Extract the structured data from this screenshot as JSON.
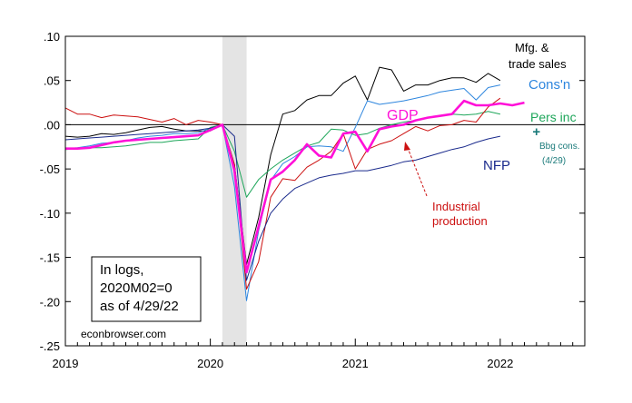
{
  "chart_data": {
    "type": "line",
    "ylim": [
      -0.25,
      0.1
    ],
    "y_ticks": [
      ".10",
      ".05",
      ".00",
      "-.05",
      "-.10",
      "-.15",
      "-.20",
      "-.25"
    ],
    "y_tick_values": [
      0.1,
      0.05,
      0.0,
      -0.05,
      -0.1,
      -0.15,
      -0.2,
      -0.25
    ],
    "xlim": [
      "2019-01",
      "2022-08"
    ],
    "x_ticks": [
      "2019",
      "2020",
      "2021",
      "2022"
    ],
    "x_tick_values": [
      "2019-01",
      "2020-01",
      "2021-01",
      "2022-01"
    ],
    "recession_shading": [
      "2020-02",
      "2020-04"
    ],
    "zero_line": true,
    "series": [
      {
        "name": "Mfg. & trade sales",
        "color": "#000000",
        "start": "2019-01",
        "values": [
          -0.013,
          -0.014,
          -0.013,
          -0.01,
          -0.011,
          -0.009,
          -0.006,
          -0.003,
          -0.002,
          -0.005,
          -0.007,
          -0.007,
          -0.007,
          0.0,
          -0.045,
          -0.158,
          -0.105,
          -0.034,
          0.012,
          0.016,
          0.028,
          0.033,
          0.033,
          0.047,
          0.055,
          0.028,
          0.065,
          0.062,
          0.038,
          0.045,
          0.045,
          0.05,
          0.053,
          0.053,
          0.048,
          0.058,
          0.05
        ]
      },
      {
        "name": "Cons'n",
        "color": "#2e86de",
        "start": "2019-01",
        "values": [
          -0.027,
          -0.026,
          -0.024,
          -0.021,
          -0.02,
          -0.018,
          -0.015,
          -0.013,
          -0.012,
          -0.01,
          -0.01,
          -0.009,
          -0.004,
          0.0,
          -0.07,
          -0.199,
          -0.12,
          -0.063,
          -0.044,
          -0.036,
          -0.025,
          -0.024,
          -0.025,
          -0.03,
          -0.003,
          0.027,
          0.023,
          0.025,
          0.027,
          0.03,
          0.033,
          0.037,
          0.039,
          0.041,
          0.028,
          0.042,
          0.045
        ]
      },
      {
        "name": "Pers inc",
        "color": "#1ea65a",
        "start": "2019-01",
        "values": [
          -0.028,
          -0.027,
          -0.026,
          -0.026,
          -0.025,
          -0.024,
          -0.022,
          -0.02,
          -0.02,
          -0.018,
          -0.017,
          -0.016,
          -0.003,
          0.0,
          -0.03,
          -0.082,
          -0.062,
          -0.05,
          -0.04,
          -0.032,
          -0.024,
          -0.02,
          -0.005,
          -0.006,
          -0.012,
          -0.01,
          -0.004,
          0.0,
          0.003,
          0.005,
          0.008,
          0.01,
          0.012,
          0.011,
          0.012,
          0.015,
          0.012
        ]
      },
      {
        "name": "Industrial production",
        "color": "#cc1010",
        "start": "2019-01",
        "values": [
          0.019,
          0.012,
          0.012,
          0.008,
          0.011,
          0.01,
          0.009,
          0.006,
          0.003,
          0.007,
          0.0,
          0.005,
          0.003,
          0.0,
          -0.045,
          -0.186,
          -0.155,
          -0.082,
          -0.061,
          -0.063,
          -0.048,
          -0.04,
          -0.03,
          -0.01,
          -0.05,
          -0.028,
          -0.022,
          -0.018,
          -0.01,
          -0.002,
          -0.007,
          -0.001,
          0.0,
          0.005,
          0.003,
          0.02,
          0.03
        ]
      },
      {
        "name": "NFP",
        "color": "#1a2a8c",
        "start": "2019-01",
        "values": [
          -0.017,
          -0.016,
          -0.015,
          -0.014,
          -0.013,
          -0.012,
          -0.011,
          -0.01,
          -0.009,
          -0.008,
          -0.007,
          -0.006,
          -0.004,
          0.0,
          -0.013,
          -0.176,
          -0.132,
          -0.1,
          -0.084,
          -0.072,
          -0.066,
          -0.06,
          -0.057,
          -0.055,
          -0.052,
          -0.052,
          -0.049,
          -0.046,
          -0.042,
          -0.04,
          -0.036,
          -0.032,
          -0.028,
          -0.025,
          -0.02,
          -0.016,
          -0.013
        ]
      },
      {
        "name": "GDP",
        "color": "#ff10d8",
        "start": "2019-01",
        "values": [
          -0.027,
          -0.027,
          -0.026,
          -0.023,
          -0.02,
          -0.018,
          -0.017,
          -0.016,
          -0.015,
          -0.014,
          -0.013,
          -0.012,
          -0.006,
          0.0,
          -0.052,
          -0.167,
          -0.115,
          -0.062,
          -0.053,
          -0.04,
          -0.022,
          -0.035,
          -0.037,
          -0.01,
          -0.008,
          -0.03,
          -0.005,
          -0.002,
          0.0,
          0.005,
          0.008,
          0.01,
          0.012,
          0.027,
          0.022,
          0.022,
          0.024,
          0.022,
          0.025
        ]
      }
    ],
    "markers": [
      {
        "label": "Bbg cons. (4/29)",
        "date": "2022-04",
        "value": -0.008,
        "color": "#1a7a7a",
        "symbol": "+"
      }
    ],
    "labels": {
      "mfg_line1": "Mfg. &",
      "mfg_line2": "trade sales",
      "consn": "Cons'n",
      "gdp": "GDP",
      "pers_inc": "Pers inc",
      "bbg_line1": "Bbg cons.",
      "bbg_line2": "(4/29)",
      "nfp": "NFP",
      "ip_line1": "Industrial",
      "ip_line2": "production"
    },
    "annotation": {
      "line1": "In logs,",
      "line2": "2020M02=0",
      "line3": "as of 4/29/22"
    },
    "source": "econbrowser.com"
  }
}
